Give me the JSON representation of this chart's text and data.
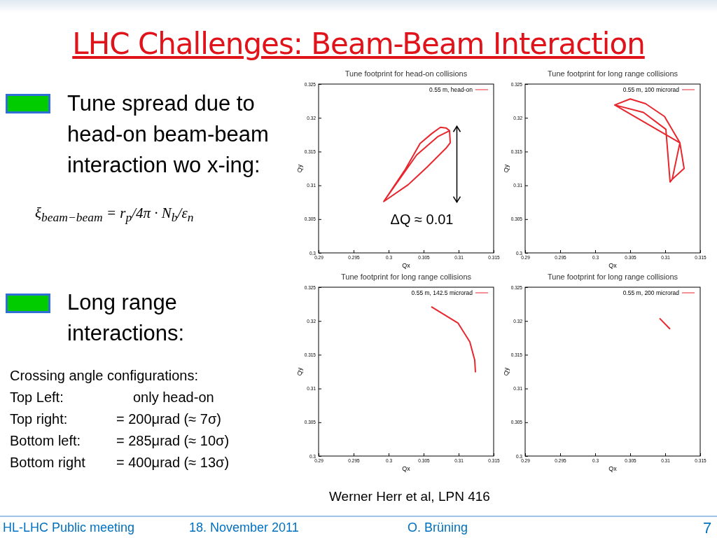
{
  "chart_data": [
    {
      "type": "other",
      "title": "LHC Challenges: Beam-Beam Interaction",
      "annotations": [
        "Tune spread due to head-on beam-beam interaction wo x-ing:",
        "ξ$_{beam−beam}$ = r$_{p}$/4π · N$_{b}$/ε$_{n}$",
        "Long range interactions:",
        "Crossing angle configurations:",
        "Top Left:",
        "only head-on",
        "Top right:",
        "= 200μrad (≈  7σ)",
        "Bottom left:",
        "= 285μrad (≈ 10σ)",
        "Bottom right",
        "= 400μrad (≈ 13σ)",
        "Werner Herr et al, LPN 416",
        "HL-LHC Public meeting",
        "18. November 2011",
        "O. Brüning",
        "7"
      ]
    },
    {
      "type": "line",
      "title": "Tune footprint for head-on collisions",
      "xlabel": "Qx",
      "ylabel": "Qy",
      "xlim": [
        0.29,
        0.315
      ],
      "ylim": [
        0.3,
        0.325
      ],
      "xticks": [
        0.29,
        0.295,
        0.3,
        0.305,
        0.31,
        0.315
      ],
      "yticks": [
        0.3,
        0.305,
        0.31,
        0.315,
        0.32,
        0.325
      ],
      "legend": "top right",
      "annotations": [
        "ΔQ ≈ 0.01"
      ],
      "series": [
        {
          "name": "0.55 m, head-on",
          "color": "#e8262e",
          "x": [
            0.2993,
            0.3024,
            0.3045,
            0.3062,
            0.3074,
            0.3082,
            0.3087,
            0.3088,
            0.3082,
            0.3055,
            0.3028,
            0.2993,
            0.304,
            0.307,
            0.3087
          ],
          "values": [
            0.3076,
            0.3124,
            0.3162,
            0.3177,
            0.3186,
            0.3185,
            0.3181,
            0.3163,
            0.3155,
            0.3127,
            0.3101,
            0.3076,
            0.3145,
            0.3172,
            0.3181
          ]
        }
      ]
    },
    {
      "type": "line",
      "title": "Tune footprint for long range collisions",
      "xlabel": "Qx",
      "ylabel": "Qy",
      "xlim": [
        0.29,
        0.315
      ],
      "ylim": [
        0.3,
        0.325
      ],
      "xticks": [
        0.29,
        0.295,
        0.3,
        0.305,
        0.31,
        0.315
      ],
      "yticks": [
        0.3,
        0.305,
        0.31,
        0.315,
        0.32,
        0.325
      ],
      "legend": "top right",
      "series": [
        {
          "name": "0.55 m, 100 microrad",
          "color": "#e8262e",
          "x": [
            0.3028,
            0.305,
            0.3072,
            0.3099,
            0.3121,
            0.3127,
            0.311,
            0.3107,
            0.3101,
            0.3069,
            0.3028,
            0.3121,
            0.311
          ],
          "values": [
            0.3219,
            0.3228,
            0.3221,
            0.3202,
            0.3163,
            0.3125,
            0.3109,
            0.3105,
            0.3183,
            0.3208,
            0.3219,
            0.3163,
            0.3109
          ]
        }
      ]
    },
    {
      "type": "line",
      "title": "Tune footprint for long range collisions",
      "xlabel": "Qx",
      "ylabel": "Qy",
      "xlim": [
        0.29,
        0.315
      ],
      "ylim": [
        0.3,
        0.325
      ],
      "xticks": [
        0.29,
        0.295,
        0.3,
        0.305,
        0.31,
        0.315
      ],
      "yticks": [
        0.3,
        0.305,
        0.31,
        0.315,
        0.32,
        0.325
      ],
      "legend": "top right",
      "series": [
        {
          "name": "0.55 m, 142.5 microrad",
          "color": "#e8262e",
          "x": [
            0.3061,
            0.3099,
            0.3116,
            0.3123,
            0.3124
          ],
          "values": [
            0.3221,
            0.3197,
            0.3169,
            0.3142,
            0.3124
          ]
        }
      ]
    },
    {
      "type": "line",
      "title": "Tune footprint for long range collisions",
      "xlabel": "Qx",
      "ylabel": "Qy",
      "xlim": [
        0.29,
        0.315
      ],
      "ylim": [
        0.3,
        0.325
      ],
      "xticks": [
        0.29,
        0.295,
        0.3,
        0.305,
        0.31,
        0.315
      ],
      "yticks": [
        0.3,
        0.305,
        0.31,
        0.315,
        0.32,
        0.325
      ],
      "legend": "top right",
      "series": [
        {
          "name": "0.55 m, 200 microrad",
          "color": "#e8262e",
          "x": [
            0.3092,
            0.3107
          ],
          "values": [
            0.3204,
            0.3188
          ]
        }
      ]
    }
  ]
}
